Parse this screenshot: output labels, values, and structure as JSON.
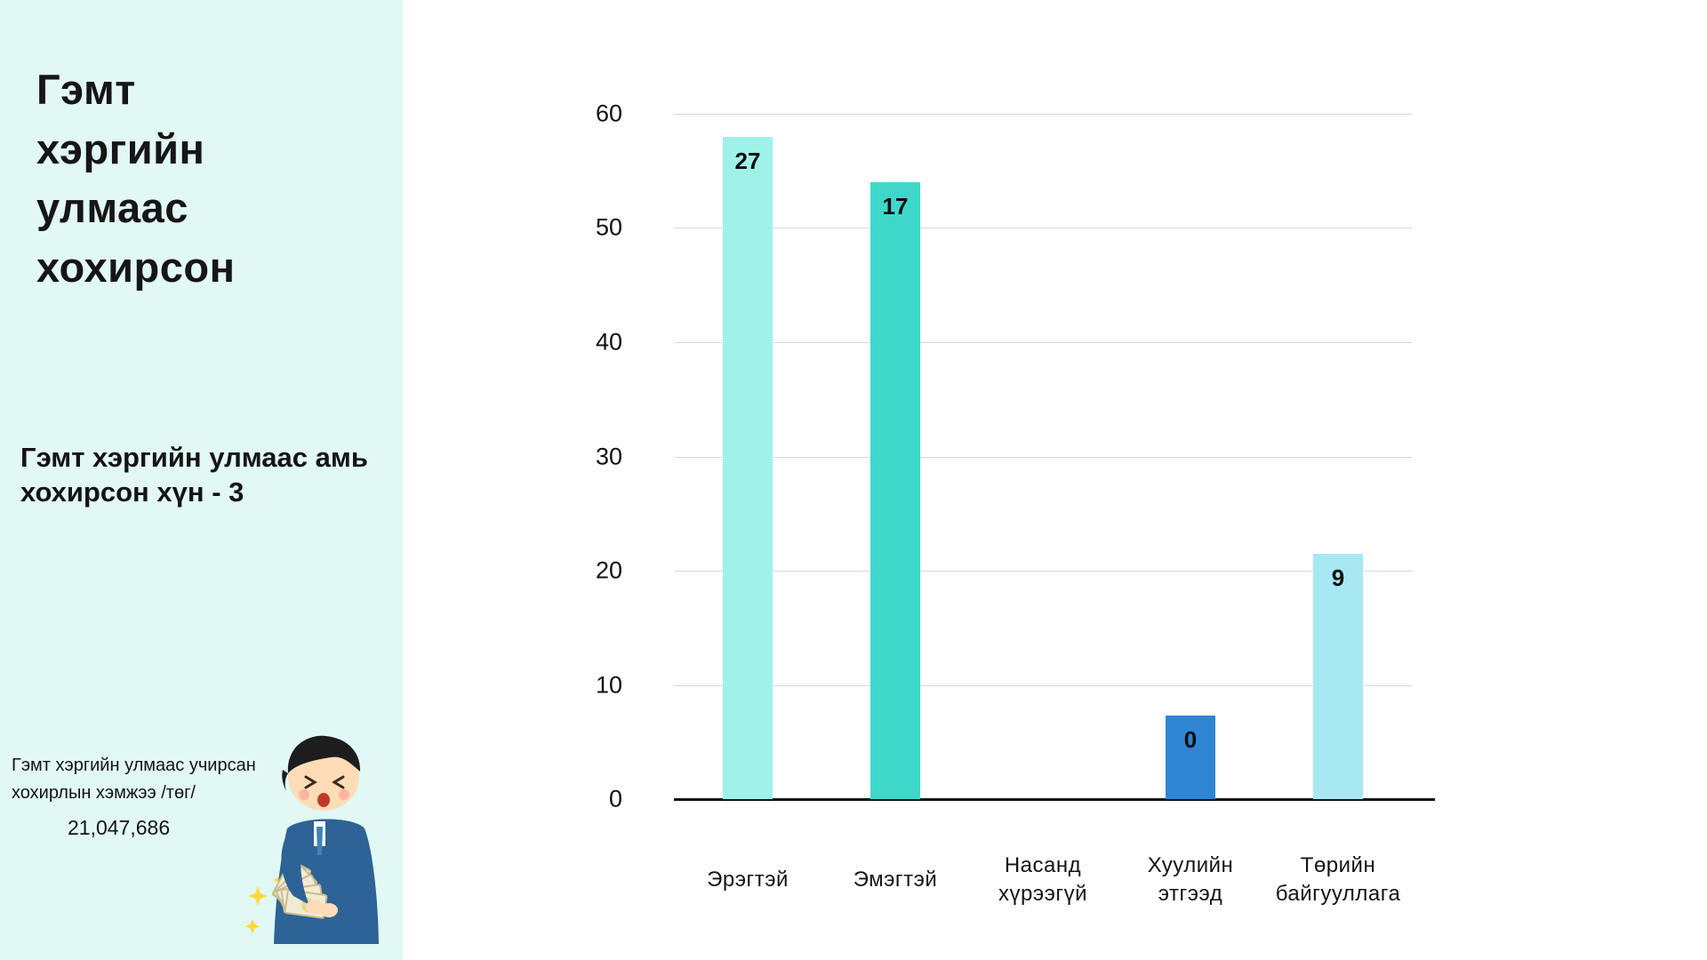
{
  "sidebar": {
    "title": "Гэмт хэргийн улмаас хохирсон",
    "subtitle": "Гэмт хэргийн улмаас амь хохирсон хүн - 3",
    "damage_caption": "Гэмт хэргийн улмаас учирсан хохирлын хэмжээ /төг/",
    "damage_amount": "21,047,686",
    "bg_color": "#e1f8f4",
    "illustration": "person-counting-money-illustration"
  },
  "chart_data": {
    "type": "bar",
    "title": "",
    "xlabel": "",
    "ylabel": "",
    "categories": [
      "Эрэгтэй",
      "Эмэгтэй",
      "Насанд хүрээгүй",
      "Хуулийн этгээд",
      "Төрийн байгууллага"
    ],
    "values": [
      27,
      17,
      null,
      0,
      9
    ],
    "bar_heights_visual": [
      58,
      54,
      0,
      7.3,
      21.5
    ],
    "bar_colors": [
      "#9ef2e9",
      "#3ed8cb",
      null,
      "#2e86d4",
      "#a8e8f2"
    ],
    "ylim": [
      0,
      60
    ],
    "yticks": [
      0,
      10,
      20,
      30,
      40,
      50,
      60
    ],
    "grid": true,
    "gridline_color": "#d8d8d8",
    "legend": "none"
  }
}
